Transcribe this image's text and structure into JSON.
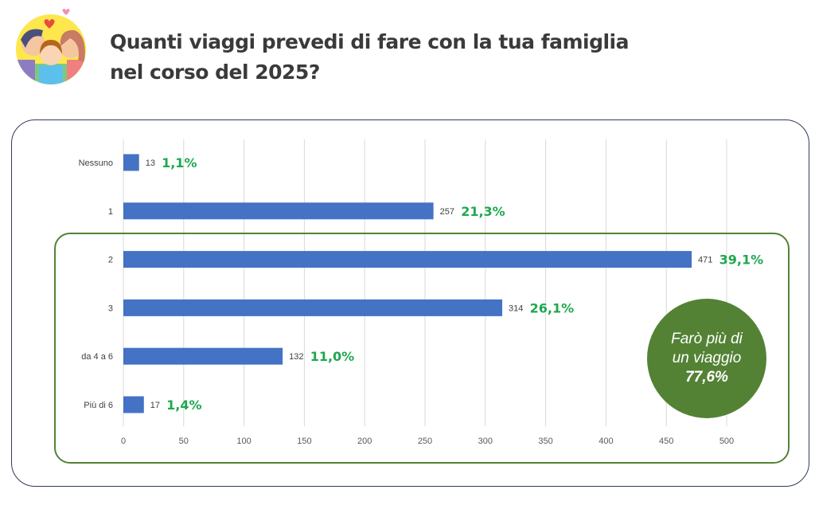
{
  "header": {
    "title_line1": "Quanti viaggi prevedi di fare con la tua famiglia",
    "title_line2": "nel corso del 2025?",
    "icon": "family-hug-icon"
  },
  "callout": {
    "line1": "Farò più di",
    "line2": "un viaggio",
    "value": "77,6%"
  },
  "colors": {
    "bar": "#4472c4",
    "pct": "#1ea84f",
    "highlight": "#548235"
  },
  "chart_data": {
    "type": "bar",
    "orientation": "horizontal",
    "categories": [
      "Nessuno",
      "1",
      "2",
      "3",
      "da 4 a 6",
      "Più di 6"
    ],
    "values": [
      13,
      257,
      471,
      314,
      132,
      17
    ],
    "percent_labels": [
      "1,1%",
      "21,3%",
      "39,1%",
      "26,1%",
      "11,0%",
      "1,4%"
    ],
    "xlim": [
      0,
      500
    ],
    "xticks": [
      0,
      50,
      100,
      150,
      200,
      250,
      300,
      350,
      400,
      450,
      500
    ],
    "grid": true,
    "highlighted_categories": [
      "2",
      "3",
      "da 4 a 6",
      "Più di 6"
    ]
  }
}
